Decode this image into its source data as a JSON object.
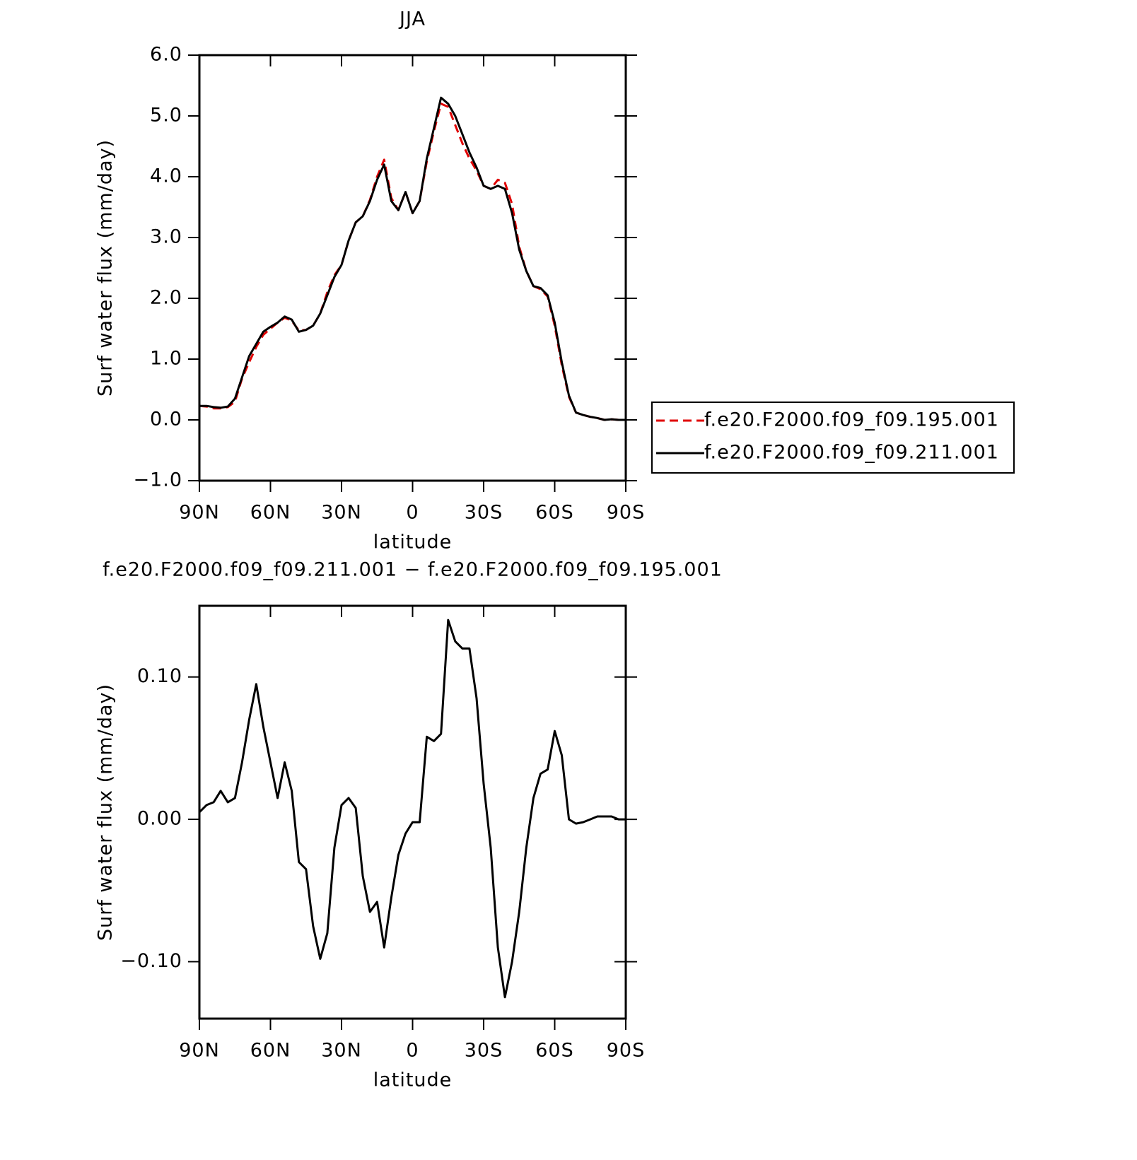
{
  "chart_data": [
    {
      "type": "line",
      "title": "JJA",
      "x_label": "latitude",
      "y_label": "Surf water flux (mm/day)",
      "x": [
        90,
        87,
        84,
        81,
        78,
        75,
        72,
        69,
        66,
        63,
        60,
        57,
        54,
        51,
        48,
        45,
        42,
        39,
        36,
        33,
        30,
        27,
        24,
        21,
        18,
        15,
        12,
        9,
        6,
        3,
        0,
        -3,
        -6,
        -9,
        -12,
        -15,
        -18,
        -21,
        -24,
        -27,
        -30,
        -33,
        -36,
        -39,
        -42,
        -45,
        -48,
        -51,
        -54,
        -57,
        -60,
        -63,
        -66,
        -69,
        -72,
        -75,
        -78,
        -81,
        -84,
        -87,
        -90
      ],
      "xlim": [
        90,
        -90
      ],
      "xticks": [
        {
          "value": 90,
          "label": "90N"
        },
        {
          "value": 60,
          "label": "60N"
        },
        {
          "value": 30,
          "label": "30N"
        },
        0,
        {
          "value": -30,
          "label": "30S"
        },
        {
          "value": -60,
          "label": "60S"
        },
        {
          "value": -90,
          "label": "90S"
        }
      ],
      "ylim": [
        -1,
        6
      ],
      "yticks": [
        {
          "value": -1,
          "label": "−1.0"
        },
        {
          "value": 0,
          "label": "0.0"
        },
        {
          "value": 1,
          "label": "1.0"
        },
        {
          "value": 2,
          "label": "2.0"
        },
        {
          "value": 3,
          "label": "3.0"
        },
        {
          "value": 4,
          "label": "4.0"
        },
        {
          "value": 5,
          "label": "5.0"
        },
        {
          "value": 6,
          "label": "6.0"
        }
      ],
      "legend": "right",
      "series": [
        {
          "name": "f.e20.F2000.f09_f09.195.001",
          "color": "#e00000",
          "dash": true,
          "values": [
            0.23,
            0.22,
            0.19,
            0.19,
            0.21,
            0.3,
            0.68,
            0.95,
            1.2,
            1.4,
            1.5,
            1.6,
            1.68,
            1.63,
            1.47,
            1.48,
            1.55,
            1.75,
            2.1,
            2.38,
            2.55,
            2.95,
            3.25,
            3.35,
            3.62,
            4.0,
            4.28,
            3.65,
            3.45,
            3.75,
            3.4,
            3.6,
            4.25,
            4.75,
            5.2,
            5.15,
            4.85,
            4.55,
            4.3,
            4.1,
            3.85,
            3.8,
            3.95,
            3.9,
            3.55,
            2.85,
            2.45,
            2.2,
            2.15,
            2.03,
            1.55,
            0.9,
            0.38,
            0.12,
            0.08,
            0.05,
            0.03,
            0.0,
            0.01,
            0.0,
            0.0
          ]
        },
        {
          "name": "f.e20.F2000.f09_f09.211.001",
          "color": "#000000",
          "dash": false,
          "values": [
            0.23,
            0.23,
            0.21,
            0.2,
            0.22,
            0.35,
            0.7,
            1.05,
            1.25,
            1.45,
            1.53,
            1.6,
            1.7,
            1.65,
            1.45,
            1.48,
            1.55,
            1.75,
            2.05,
            2.35,
            2.55,
            2.95,
            3.25,
            3.35,
            3.6,
            3.95,
            4.2,
            3.6,
            3.45,
            3.75,
            3.4,
            3.6,
            4.3,
            4.8,
            5.3,
            5.2,
            5.0,
            4.7,
            4.4,
            4.15,
            3.85,
            3.8,
            3.85,
            3.8,
            3.4,
            2.8,
            2.45,
            2.2,
            2.17,
            2.05,
            1.6,
            0.95,
            0.4,
            0.12,
            0.08,
            0.05,
            0.03,
            0.0,
            0.01,
            0.0,
            0.0
          ]
        }
      ]
    },
    {
      "type": "line",
      "title": "f.e20.F2000.f09_f09.211.001 − f.e20.F2000.f09_f09.195.001",
      "x_label": "latitude",
      "y_label": "Surf water flux (mm/day)",
      "x": [
        90,
        87,
        84,
        81,
        78,
        75,
        72,
        69,
        66,
        63,
        60,
        57,
        54,
        51,
        48,
        45,
        42,
        39,
        36,
        33,
        30,
        27,
        24,
        21,
        18,
        15,
        12,
        9,
        6,
        3,
        0,
        -3,
        -6,
        -9,
        -12,
        -15,
        -18,
        -21,
        -24,
        -27,
        -30,
        -33,
        -36,
        -39,
        -42,
        -45,
        -48,
        -51,
        -54,
        -57,
        -60,
        -63,
        -66,
        -69,
        -72,
        -75,
        -78,
        -81,
        -84,
        -87,
        -90
      ],
      "xlim": [
        90,
        -90
      ],
      "xticks": [
        {
          "value": 90,
          "label": "90N"
        },
        {
          "value": 60,
          "label": "60N"
        },
        {
          "value": 30,
          "label": "30N"
        },
        0,
        {
          "value": -30,
          "label": "30S"
        },
        {
          "value": -60,
          "label": "60S"
        },
        {
          "value": -90,
          "label": "90S"
        }
      ],
      "ylim": [
        -0.14,
        0.15
      ],
      "yticks": [
        {
          "value": -0.1,
          "label": "−0.10"
        },
        {
          "value": 0,
          "label": "0.00"
        },
        {
          "value": 0.1,
          "label": "0.10"
        }
      ],
      "series": [
        {
          "color": "#000000",
          "dash": false,
          "values": [
            0.005,
            0.01,
            0.012,
            0.02,
            0.012,
            0.015,
            0.04,
            0.07,
            0.095,
            0.065,
            0.04,
            0.015,
            0.04,
            0.02,
            -0.03,
            -0.035,
            -0.075,
            -0.098,
            -0.08,
            -0.02,
            0.01,
            0.015,
            0.008,
            -0.04,
            -0.065,
            -0.058,
            -0.09,
            -0.055,
            -0.025,
            -0.01,
            -0.002,
            -0.002,
            0.058,
            0.055,
            0.06,
            0.14,
            0.125,
            0.12,
            0.12,
            0.085,
            0.025,
            -0.02,
            -0.09,
            -0.125,
            -0.1,
            -0.065,
            -0.02,
            0.015,
            0.032,
            0.035,
            0.062,
            0.045,
            0.0,
            -0.003,
            -0.002,
            0.0,
            0.002,
            0.002,
            0.002,
            0.0,
            0.0
          ]
        }
      ]
    }
  ]
}
